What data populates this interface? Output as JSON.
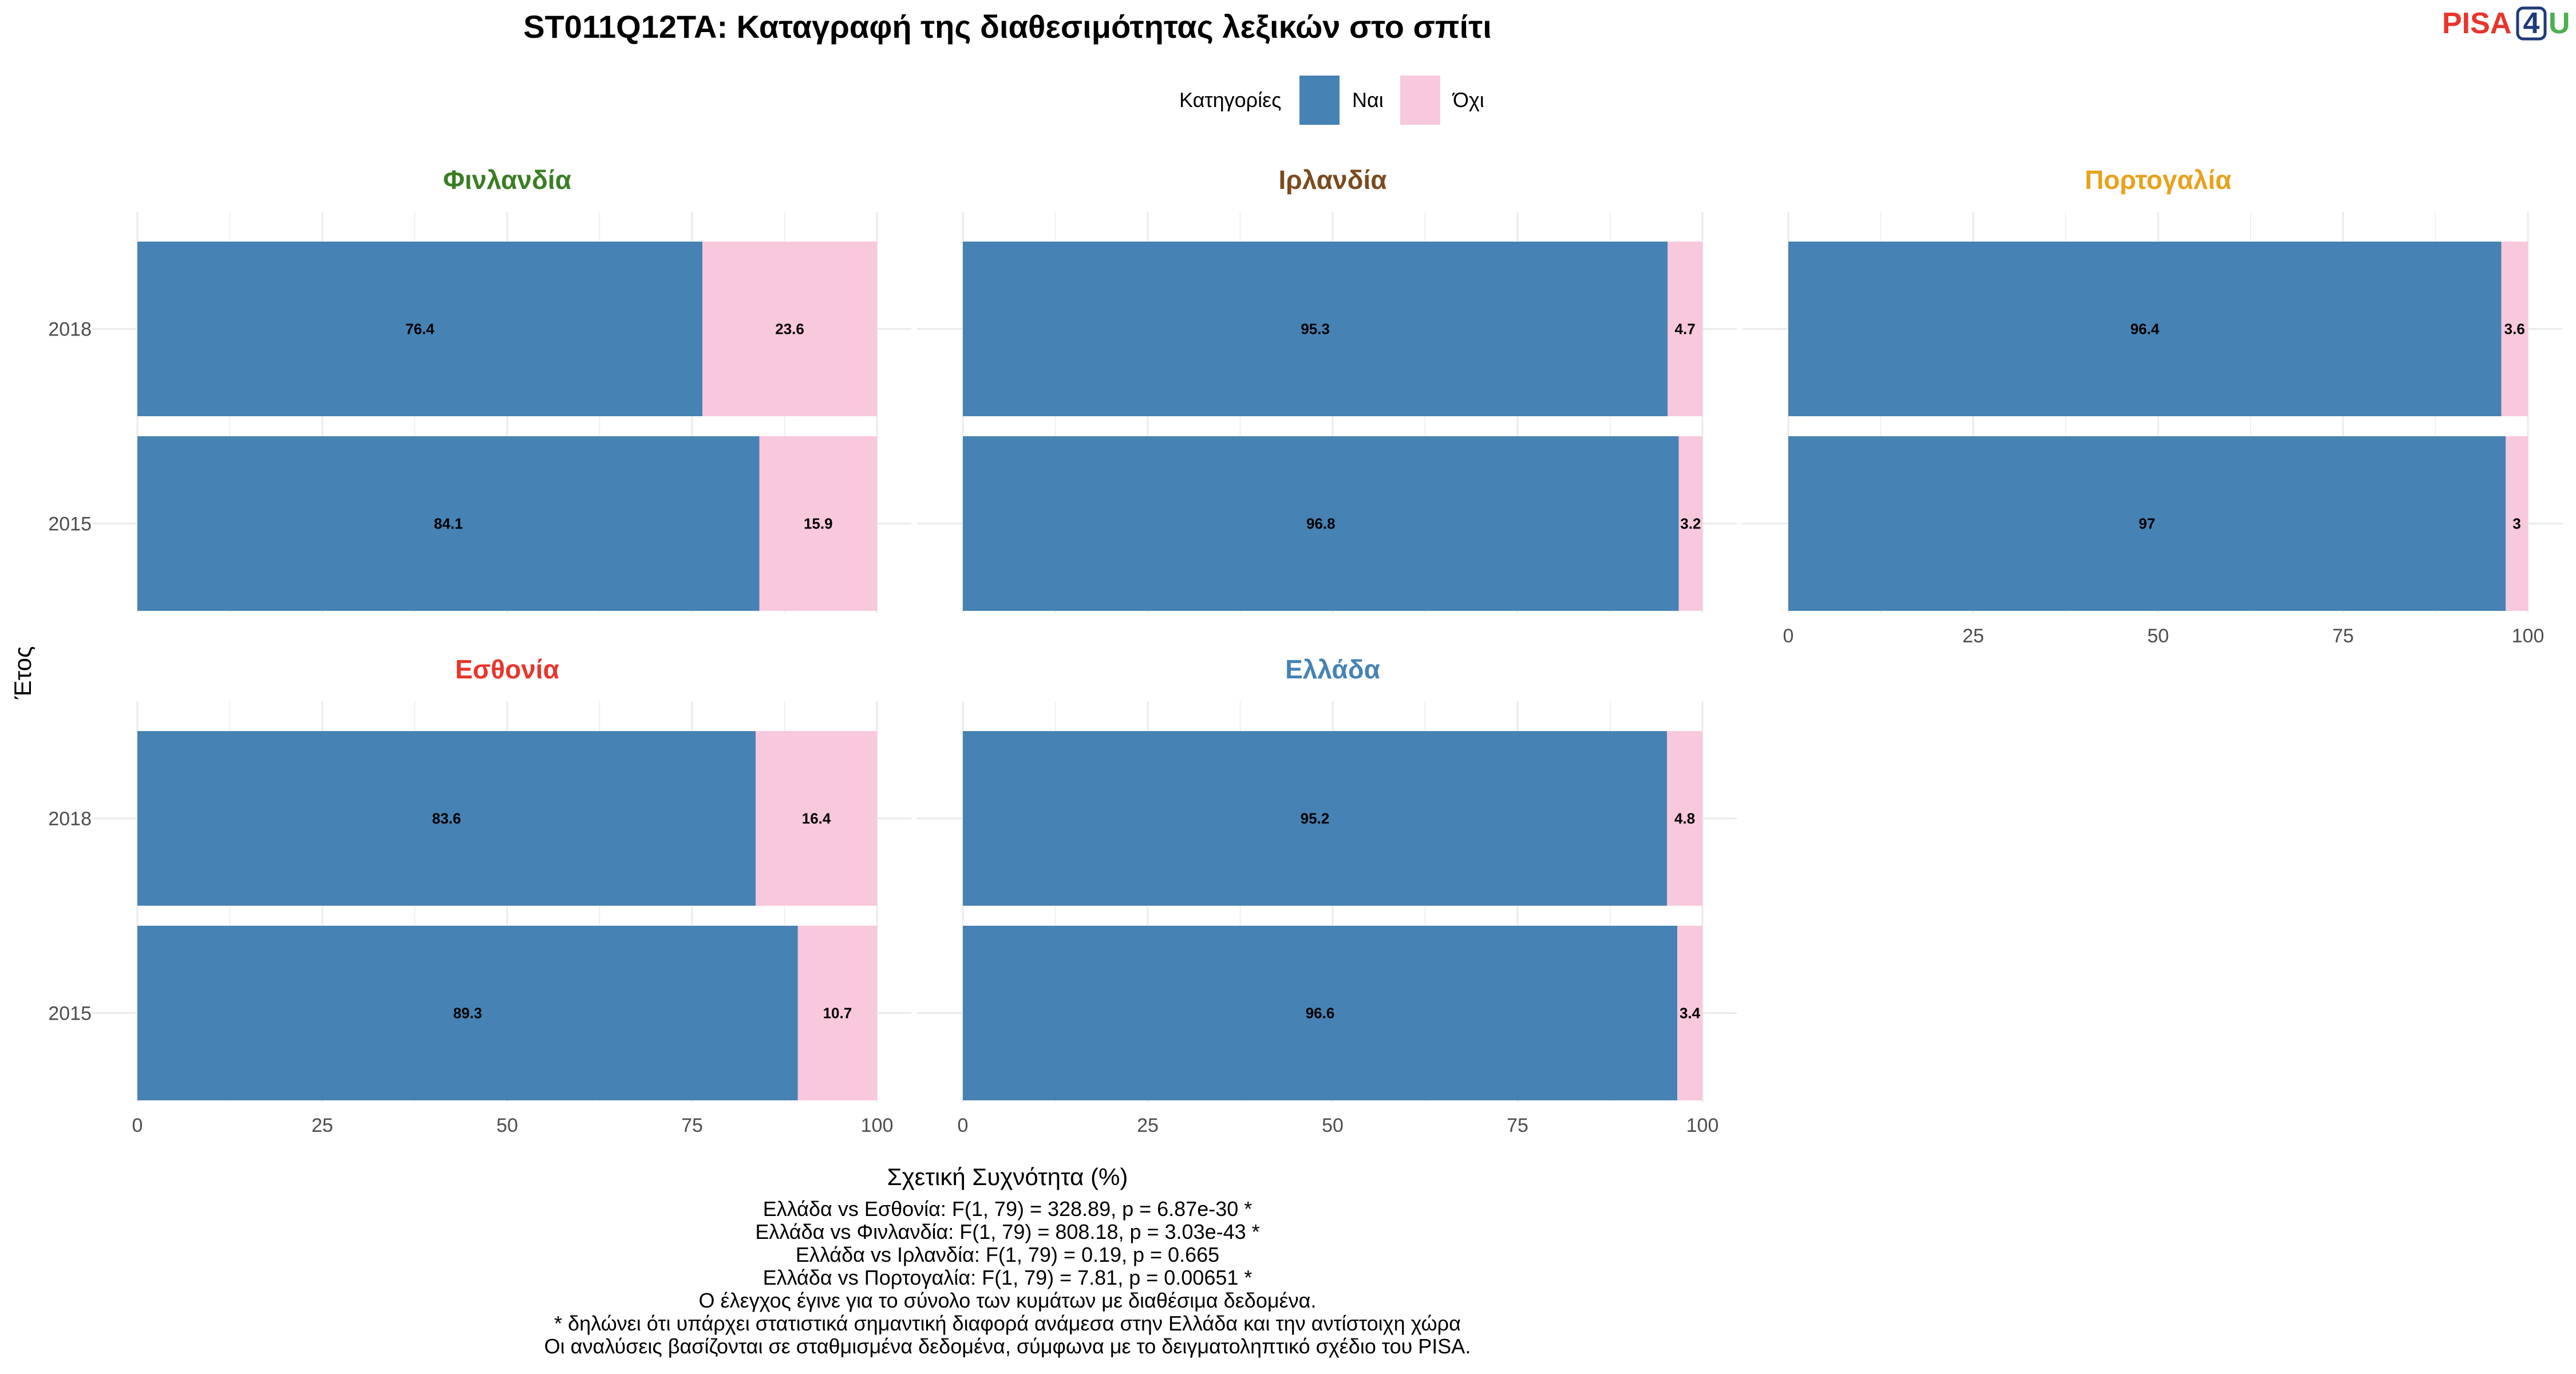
{
  "chart_data": {
    "type": "bar",
    "orientation": "horizontal",
    "stacked": true,
    "title": "ST011Q12TA: Καταγραφή της διαθεσιμότητας λεξικών στο σπίτι",
    "xlabel": "Σχετική Συχνότητα (%)",
    "ylabel": "Έτος",
    "xlim": [
      0,
      100
    ],
    "xticks": [
      "0",
      "25",
      "50",
      "75",
      "100"
    ],
    "legend": {
      "title": "Κατηγορίες",
      "position": "top",
      "items": [
        {
          "label": "Ναι",
          "color": "#4682B4"
        },
        {
          "label": "Όχι",
          "color": "#F8C8DC"
        }
      ]
    },
    "panels": [
      {
        "country": "Φινλανδία",
        "color": "#3A7D23",
        "rows": [
          {
            "year": "2018",
            "yes": 76.4,
            "no": 23.6
          },
          {
            "year": "2015",
            "yes": 84.1,
            "no": 15.9
          }
        ]
      },
      {
        "country": "Ιρλανδία",
        "color": "#7B4A1E",
        "rows": [
          {
            "year": "2018",
            "yes": 95.3,
            "no": 4.7
          },
          {
            "year": "2015",
            "yes": 96.8,
            "no": 3.2
          }
        ]
      },
      {
        "country": "Πορτογαλία",
        "color": "#E8A21A",
        "rows": [
          {
            "year": "2018",
            "yes": 96.4,
            "no": 3.6
          },
          {
            "year": "2015",
            "yes": 97,
            "no": 3
          }
        ]
      },
      {
        "country": "Εσθονία",
        "color": "#E8352B",
        "rows": [
          {
            "year": "2018",
            "yes": 83.6,
            "no": 16.4
          },
          {
            "year": "2015",
            "yes": 89.3,
            "no": 10.7
          }
        ]
      },
      {
        "country": "Ελλάδα",
        "color": "#4682B4",
        "rows": [
          {
            "year": "2018",
            "yes": 95.2,
            "no": 4.8
          },
          {
            "year": "2015",
            "yes": 96.6,
            "no": 3.4
          }
        ]
      }
    ],
    "notes": [
      "Ελλάδα vs Εσθονία: F(1, 79) = 328.89, p = 6.87e-30 *",
      "Ελλάδα vs Φινλανδία: F(1, 79) = 808.18, p = 3.03e-43 *",
      "Ελλάδα vs Ιρλανδία: F(1, 79) = 0.19, p = 0.665",
      "Ελλάδα vs Πορτογαλία: F(1, 79) = 7.81, p = 0.00651 *",
      "Ο έλεγχος έγινε για το σύνολο των κυμάτων με διαθέσιμα δεδομένα.",
      "* δηλώνει ότι υπάρχει στατιστικά σημαντική διαφορά ανάμεσα στην Ελλάδα και την αντίστοιχη χώρα",
      "Οι αναλύσεις βασίζονται σε σταθμισμένα δεδομένα, σύμφωνα με το δειγματοληπτικό σχέδιο του PISA."
    ]
  },
  "logo": {
    "part1": "PISA",
    "part2": "4",
    "part3": "U",
    "color1": "#E8352B",
    "color2": "#1F3A7A",
    "color3": "#4CAF50"
  }
}
